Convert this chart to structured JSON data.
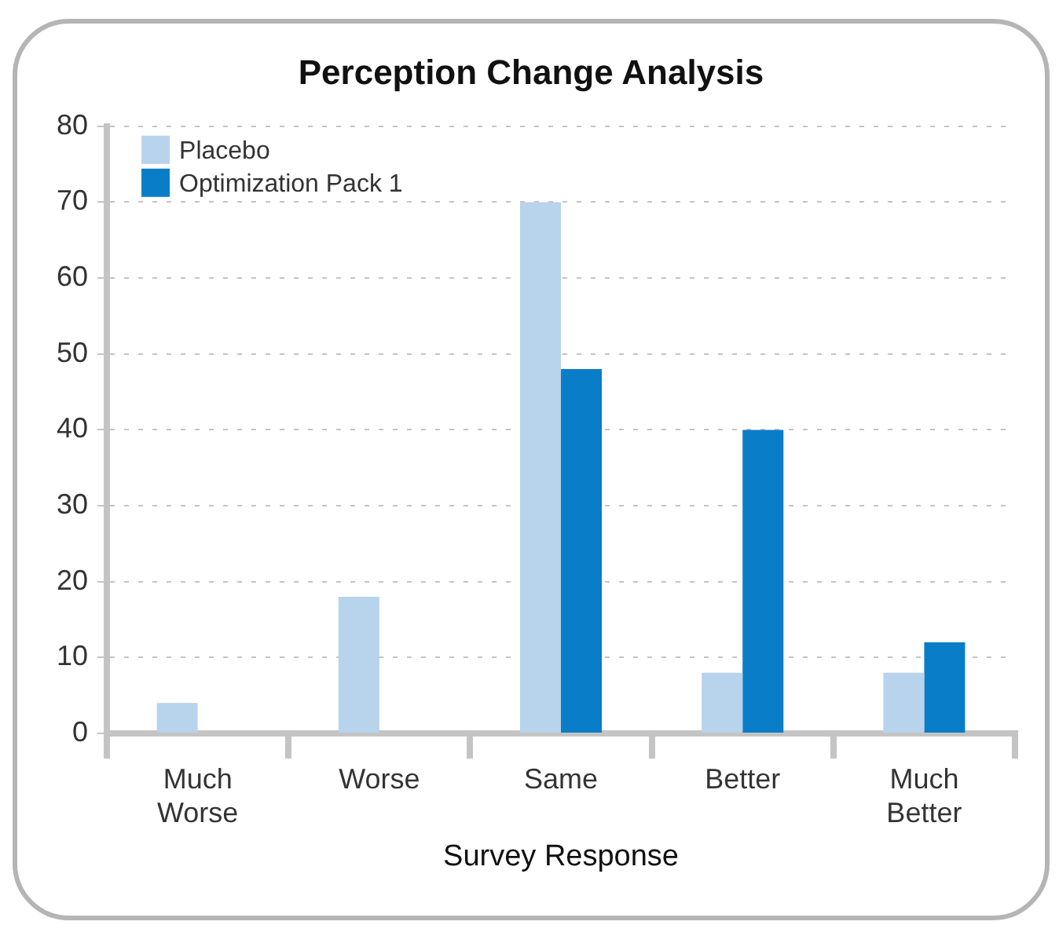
{
  "chart_data": {
    "type": "bar",
    "title": "Perception Change Analysis",
    "xlabel": "Survey Response",
    "categories": [
      "Much Worse",
      "Worse",
      "Same",
      "Better",
      "Much Better"
    ],
    "series": [
      {
        "name": "Placebo",
        "color": "#b8d3ec",
        "values": [
          4,
          18,
          70,
          8,
          8
        ]
      },
      {
        "name": "Optimization Pack 1",
        "color": "#0a7dc8",
        "values": [
          0,
          0,
          48,
          40,
          12
        ]
      }
    ],
    "ylim": [
      0,
      80
    ],
    "yticks": [
      0,
      10,
      20,
      30,
      40,
      50,
      60,
      70,
      80
    ],
    "grid": "y",
    "legend": "top left"
  }
}
